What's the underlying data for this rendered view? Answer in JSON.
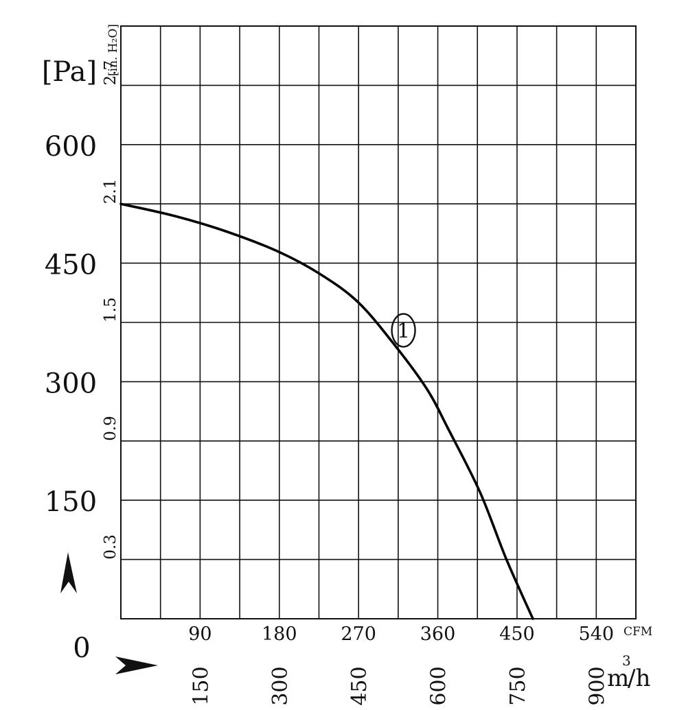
{
  "chart_data": {
    "type": "line",
    "title": "",
    "x_axis": {
      "label": "m³/h",
      "unit_prefix": "m",
      "unit_superscript": "3",
      "unit_suffix": "/h",
      "range": [
        0,
        975
      ],
      "ticks": [
        150,
        300,
        450,
        600,
        750,
        900
      ]
    },
    "x_axis_secondary": {
      "label": "CFM",
      "ticks": [
        90,
        180,
        270,
        360,
        450,
        540
      ]
    },
    "y_axis": {
      "label": "[Pa]",
      "range": [
        0,
        750
      ],
      "ticks": [
        0,
        150,
        300,
        450,
        600
      ]
    },
    "y_axis_secondary": {
      "label": "[in. H₂O]",
      "ticks": [
        "0.3",
        "0.9",
        "1.5",
        "2.1",
        "2.7"
      ]
    },
    "grid": true,
    "series": [
      {
        "name": "1",
        "color": "#000000",
        "x": [
          0,
          100,
          200,
          300,
          380,
          450,
          520,
          580,
          620,
          680,
          730,
          780
        ],
        "y": [
          525,
          510,
          490,
          464,
          435,
          400,
          345,
          290,
          240,
          160,
          75,
          0
        ]
      }
    ]
  }
}
